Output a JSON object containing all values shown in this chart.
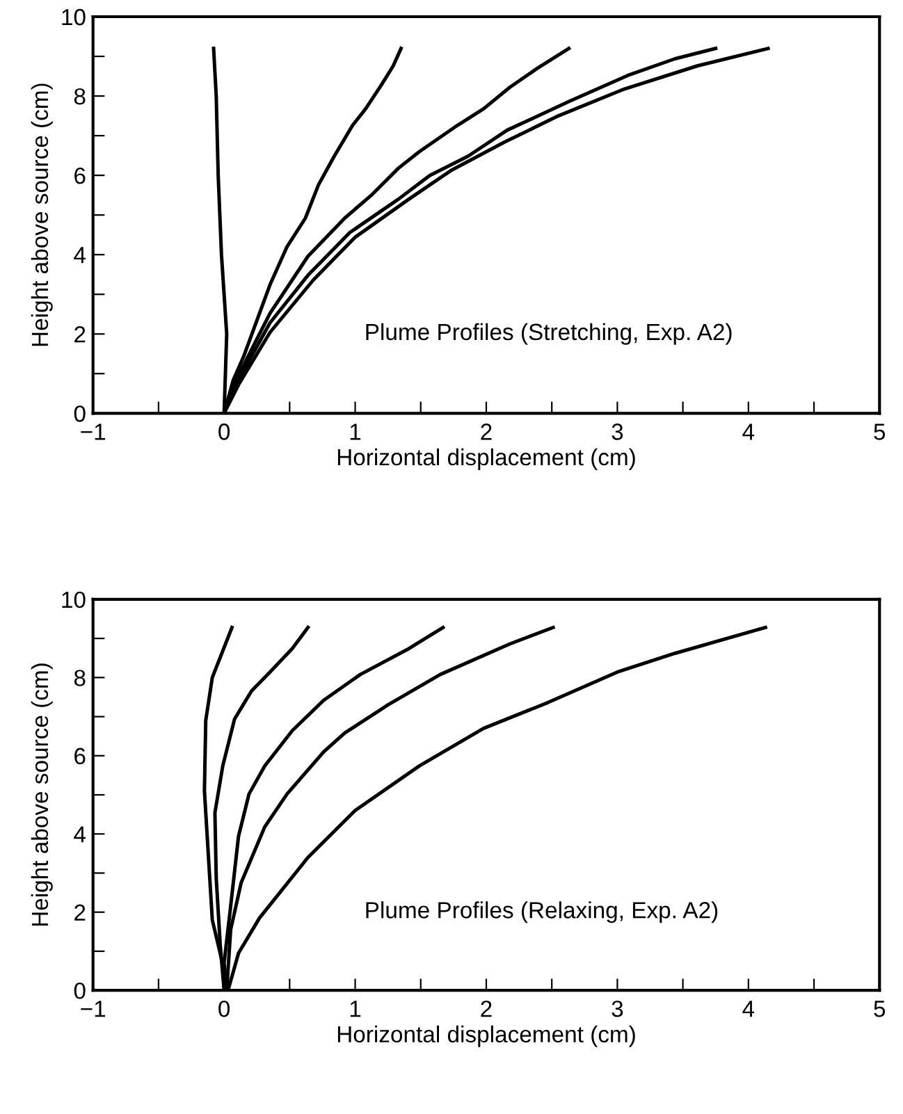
{
  "chart_data": [
    {
      "type": "line",
      "xlabel": "Horizontal displacement (cm)",
      "ylabel": "Height above source (cm)",
      "annotations": [
        "Plume Profiles (Stretching, Exp. A2)"
      ],
      "xlim": [
        -1,
        5
      ],
      "ylim": [
        0,
        10
      ],
      "xticks": [
        {
          "value": -1,
          "label": "−1"
        },
        {
          "value": -0.5,
          "label": null
        },
        0,
        {
          "value": 0.5,
          "label": null
        },
        1,
        {
          "value": 1.5,
          "label": null
        },
        2,
        {
          "value": 2.5,
          "label": null
        },
        3,
        {
          "value": 3.5,
          "label": null
        },
        4,
        {
          "value": 4.5,
          "label": null
        },
        5
      ],
      "yticks": [
        0,
        {
          "value": 1,
          "label": null
        },
        2,
        {
          "value": 3,
          "label": null
        },
        4,
        {
          "value": 5,
          "label": null
        },
        6,
        {
          "value": 7,
          "label": null
        },
        8,
        {
          "value": 9,
          "label": null
        },
        10
      ],
      "grid": false,
      "legend": false,
      "marker": "none",
      "line_style": "solid",
      "series": [
        {
          "color": "#000000",
          "x": [
            0,
            0.02,
            -0.02,
            -0.045,
            -0.06,
            -0.08
          ],
          "values": [
            0,
            2,
            4,
            6,
            8,
            9.2
          ]
        },
        {
          "color": "#000000",
          "x": [
            0,
            0.07,
            0.15,
            0.35,
            0.48,
            0.62,
            0.72,
            0.84,
            0.98,
            1.08,
            1.2,
            1.29,
            1.35
          ],
          "values": [
            0,
            0.84,
            1.44,
            3.24,
            4.2,
            4.92,
            5.76,
            6.48,
            7.26,
            7.68,
            8.28,
            8.76,
            9.2
          ]
        },
        {
          "color": "#000000",
          "x": [
            0,
            0.11,
            0.35,
            0.64,
            0.92,
            1.13,
            1.33,
            1.49,
            1.78,
            1.98,
            2.18,
            2.39,
            2.63
          ],
          "values": [
            0,
            0.96,
            2.52,
            3.96,
            4.92,
            5.52,
            6.18,
            6.6,
            7.26,
            7.68,
            8.22,
            8.7,
            9.2
          ]
        },
        {
          "color": "#000000",
          "x": [
            0,
            0.11,
            0.35,
            0.64,
            0.96,
            1.33,
            1.57,
            1.86,
            2.16,
            2.63,
            3.08,
            3.44,
            3.75
          ],
          "values": [
            0,
            0.84,
            2.28,
            3.48,
            4.56,
            5.4,
            6.0,
            6.48,
            7.14,
            7.86,
            8.52,
            8.94,
            9.2
          ]
        },
        {
          "color": "#000000",
          "x": [
            0,
            0.11,
            0.35,
            0.68,
            1.0,
            1.41,
            1.73,
            2.14,
            2.55,
            3.04,
            3.61,
            4.15
          ],
          "values": [
            0,
            0.72,
            2.04,
            3.36,
            4.44,
            5.4,
            6.12,
            6.84,
            7.5,
            8.16,
            8.76,
            9.2
          ]
        }
      ]
    },
    {
      "type": "line",
      "xlabel": "Horizontal displacement (cm)",
      "ylabel": "Height above source (cm)",
      "annotations": [
        "Plume Profiles (Relaxing, Exp. A2)"
      ],
      "xlim": [
        -1,
        5
      ],
      "ylim": [
        0,
        10
      ],
      "xticks": [
        {
          "value": -1,
          "label": "−1"
        },
        {
          "value": -0.5,
          "label": null
        },
        0,
        {
          "value": 0.5,
          "label": null
        },
        1,
        {
          "value": 1.5,
          "label": null
        },
        2,
        {
          "value": 2.5,
          "label": null
        },
        3,
        {
          "value": 3.5,
          "label": null
        },
        4,
        {
          "value": 4.5,
          "label": null
        },
        5
      ],
      "yticks": [
        0,
        {
          "value": 1,
          "label": null
        },
        2,
        {
          "value": 3,
          "label": null
        },
        4,
        {
          "value": 5,
          "label": null
        },
        6,
        {
          "value": 7,
          "label": null
        },
        8,
        {
          "value": 9,
          "label": null
        },
        10
      ],
      "grid": false,
      "legend": false,
      "marker": "none",
      "line_style": "solid",
      "series": [
        {
          "color": "#000000",
          "x": [
            0.03,
            -0.03,
            -0.09,
            -0.13,
            -0.15,
            -0.14,
            -0.09,
            0.06
          ],
          "values": [
            0,
            0.95,
            1.8,
            4.0,
            5.1,
            6.9,
            8.0,
            9.28
          ]
        },
        {
          "color": "#000000",
          "x": [
            0,
            -0.03,
            -0.06,
            -0.07,
            -0.01,
            0.08,
            0.21,
            0.35,
            0.52,
            0.64
          ],
          "values": [
            0,
            1.19,
            2.87,
            4.54,
            5.74,
            6.94,
            7.66,
            8.14,
            8.74,
            9.28
          ]
        },
        {
          "color": "#000000",
          "x": [
            0.02,
            0,
            0.05,
            0.11,
            0.19,
            0.31,
            0.52,
            0.76,
            1.04,
            1.41,
            1.67
          ],
          "values": [
            0,
            0.7,
            2.15,
            3.94,
            5.02,
            5.74,
            6.64,
            7.42,
            8.08,
            8.74,
            9.28
          ]
        },
        {
          "color": "#000000",
          "x": [
            0.02,
            0.05,
            0.13,
            0.31,
            0.48,
            0.76,
            0.92,
            1.25,
            1.65,
            2.18,
            2.51
          ],
          "values": [
            0,
            1.55,
            2.75,
            4.18,
            5.02,
            6.1,
            6.58,
            7.3,
            8.08,
            8.86,
            9.28
          ]
        },
        {
          "color": "#000000",
          "x": [
            0.03,
            0.11,
            0.27,
            0.64,
            1.0,
            1.49,
            1.98,
            2.47,
            3.0,
            3.44,
            4.13
          ],
          "values": [
            0,
            0.95,
            1.85,
            3.4,
            4.6,
            5.74,
            6.7,
            7.36,
            8.14,
            8.62,
            9.28
          ]
        }
      ]
    }
  ]
}
